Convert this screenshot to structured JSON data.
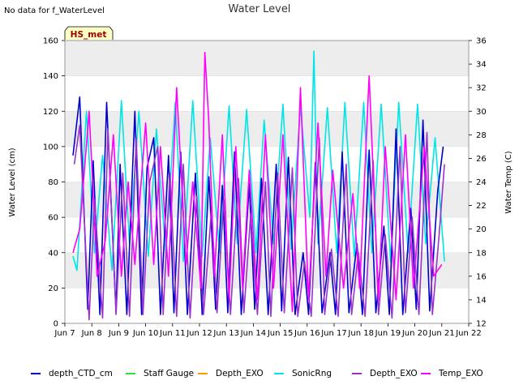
{
  "header": {
    "no_data_text": "No data for f_WaterLevel",
    "badge": "HS_met"
  },
  "chart_data": {
    "type": "line",
    "title": "Water Level",
    "xlabel": "",
    "ylabel": "Water Level (cm)",
    "y2label": "Water Temp (C)",
    "ylim": [
      0,
      160
    ],
    "y2lim": [
      12,
      36
    ],
    "xlim": [
      0,
      15
    ],
    "yticks": [
      0,
      20,
      40,
      60,
      80,
      100,
      120,
      140,
      160
    ],
    "y2ticks": [
      12,
      14,
      16,
      18,
      20,
      22,
      24,
      26,
      28,
      30,
      32,
      34,
      36
    ],
    "xticks": [
      "Jun 7",
      "Jun 8",
      "Jun 9",
      "Jun 10",
      "Jun 11",
      "Jun 12",
      "Jun 13",
      "Jun 14",
      "Jun 15",
      "Jun 16",
      "Jun 17",
      "Jun 18",
      "Jun 19",
      "Jun 20",
      "Jun 21",
      "Jun 22"
    ],
    "grid": true,
    "legend_position": "bottom",
    "series": [
      {
        "name": "depth_CTD_cm",
        "color": "#0000cc",
        "axis": "left",
        "x": [
          0.3,
          0.55,
          0.85,
          1.05,
          1.3,
          1.55,
          1.9,
          2.05,
          2.3,
          2.6,
          2.85,
          3.05,
          3.3,
          3.55,
          3.85,
          4.05,
          4.3,
          4.55,
          4.85,
          5.1,
          5.35,
          5.6,
          5.85,
          6.05,
          6.3,
          6.55,
          6.85,
          7.05,
          7.3,
          7.55,
          7.85,
          8.05,
          8.3,
          8.55,
          8.85,
          9.05,
          9.3,
          9.55,
          9.85,
          10.05,
          10.3,
          10.55,
          10.85,
          11.05,
          11.3,
          11.55,
          11.85,
          12.05,
          12.3,
          12.55,
          12.85,
          13.05,
          13.3,
          13.55,
          13.85,
          14.05
        ],
        "y": [
          95,
          128,
          8,
          92,
          5,
          125,
          6,
          90,
          5,
          120,
          5,
          88,
          105,
          5,
          95,
          6,
          97,
          5,
          85,
          5,
          83,
          8,
          78,
          6,
          97,
          5,
          79,
          8,
          82,
          5,
          90,
          7,
          94,
          5,
          40,
          5,
          91,
          6,
          40,
          5,
          97,
          6,
          45,
          5,
          98,
          6,
          55,
          5,
          110,
          5,
          65,
          8,
          115,
          7,
          75,
          100
        ]
      },
      {
        "name": "Staff Gauge",
        "color": "#33dd33",
        "axis": "left",
        "x": [],
        "y": []
      },
      {
        "name": "Depth_EXO",
        "color": "#ff9900",
        "axis": "left",
        "x": [],
        "y": []
      },
      {
        "name": "SonicRng",
        "color": "#00e5e5",
        "axis": "left",
        "x": [
          0.3,
          0.45,
          0.8,
          1.1,
          1.4,
          1.75,
          2.1,
          2.4,
          2.75,
          3.1,
          3.4,
          3.75,
          4.1,
          4.4,
          4.75,
          5.1,
          5.4,
          5.75,
          6.1,
          6.4,
          6.75,
          7.1,
          7.4,
          7.75,
          8.1,
          8.4,
          8.75,
          9.1,
          9.25,
          9.4,
          9.75,
          10.1,
          10.4,
          10.75,
          11.1,
          11.4,
          11.75,
          12.1,
          12.4,
          12.75,
          13.1,
          13.4,
          13.75,
          14.1
        ],
        "y": [
          38,
          30,
          120,
          40,
          95,
          30,
          126,
          45,
          120,
          38,
          110,
          40,
          125,
          35,
          126,
          38,
          105,
          40,
          123,
          45,
          121,
          40,
          115,
          45,
          124,
          42,
          123,
          60,
          154,
          45,
          122,
          40,
          125,
          38,
          125,
          40,
          124,
          35,
          125,
          40,
          124,
          45,
          105,
          35
        ]
      },
      {
        "name": "Depth_EXO",
        "color": "#9933cc",
        "axis": "left",
        "x": [
          0.35,
          0.55,
          0.9,
          1.1,
          1.4,
          1.6,
          1.9,
          2.15,
          2.4,
          2.65,
          2.9,
          3.15,
          3.45,
          3.65,
          3.9,
          4.15,
          4.4,
          4.65,
          4.9,
          5.15,
          5.45,
          5.65,
          5.9,
          6.15,
          6.45,
          6.65,
          6.9,
          7.15,
          7.45,
          7.65,
          7.9,
          8.15,
          8.45,
          8.65,
          8.9,
          9.15,
          9.45,
          9.65,
          9.9,
          10.15,
          10.45,
          10.65,
          10.9,
          11.15,
          11.45,
          11.65,
          11.9,
          12.15,
          12.45,
          12.65,
          12.9,
          13.15,
          13.45,
          13.65,
          13.9,
          14.1
        ],
        "y": [
          90,
          112,
          2,
          70,
          3,
          110,
          5,
          85,
          4,
          105,
          5,
          80,
          100,
          5,
          85,
          4,
          90,
          3,
          72,
          5,
          65,
          6,
          70,
          5,
          82,
          6,
          62,
          5,
          80,
          4,
          85,
          6,
          88,
          4,
          35,
          4,
          105,
          5,
          42,
          4,
          90,
          5,
          40,
          4,
          92,
          5,
          50,
          3,
          100,
          6,
          60,
          5,
          108,
          5,
          50,
          90
        ]
      },
      {
        "name": "Temp_EXO",
        "color": "#ff00ff",
        "axis": "right",
        "x": [
          0.3,
          0.55,
          0.9,
          1.2,
          1.5,
          1.8,
          2.1,
          2.35,
          2.6,
          3.0,
          3.3,
          3.55,
          3.85,
          4.15,
          4.5,
          4.75,
          5.05,
          5.2,
          5.35,
          5.55,
          5.85,
          6.1,
          6.35,
          6.6,
          6.85,
          7.15,
          7.45,
          7.75,
          8.1,
          8.45,
          8.75,
          9.05,
          9.4,
          9.7,
          9.95,
          10.35,
          10.7,
          10.95,
          11.3,
          11.65,
          11.9,
          12.3,
          12.65,
          12.95,
          13.35,
          13.7,
          14.0
        ],
        "y": [
          18,
          20,
          30,
          16,
          19,
          28,
          16,
          24,
          17,
          29,
          17,
          27,
          16,
          32,
          17,
          24,
          15,
          35,
          29,
          16,
          28,
          14,
          27,
          15,
          25,
          14,
          28,
          15,
          28,
          13,
          32,
          14,
          29,
          16,
          25,
          15,
          23,
          15,
          33,
          14,
          27,
          14,
          28,
          15,
          27,
          16,
          17
        ]
      }
    ]
  }
}
